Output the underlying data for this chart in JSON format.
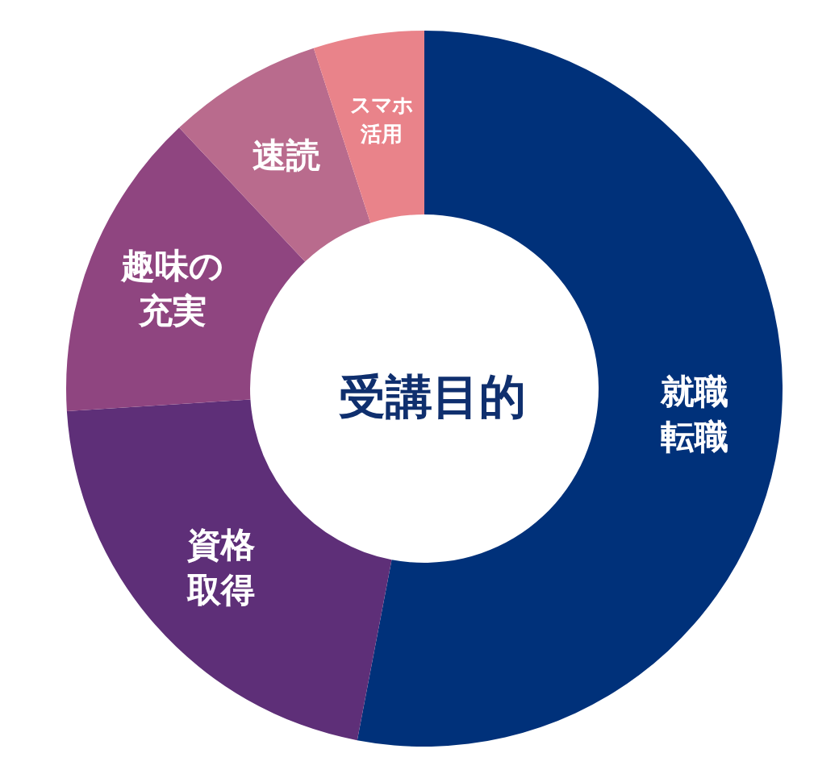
{
  "chart_data": {
    "type": "donut",
    "title": "受講目的",
    "categories": [
      "就職転職",
      "資格取得",
      "趣味の充実",
      "速読",
      "スマホ活用"
    ],
    "values": [
      53,
      21,
      14,
      7,
      5
    ],
    "colors": [
      "#00317a",
      "#5e2f78",
      "#8f4580",
      "#b96b8d",
      "#e9838a"
    ],
    "legend": false
  }
}
